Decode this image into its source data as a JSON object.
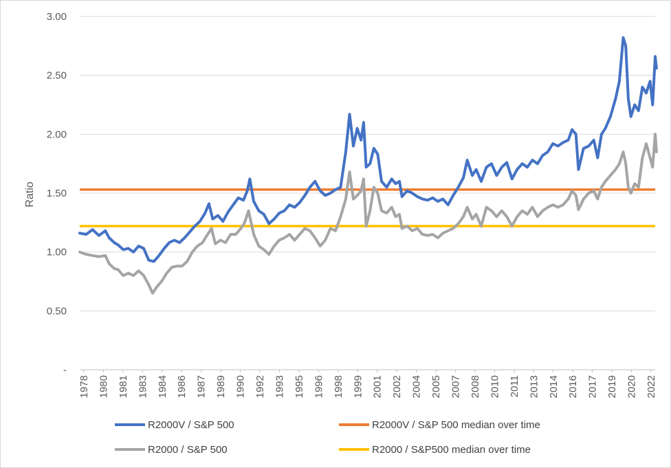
{
  "chart_data": {
    "type": "line",
    "ylabel": "Ratio",
    "xlabel": "",
    "ylim": [
      0,
      3
    ],
    "yticks": [
      {
        "value": 0,
        "label": "-"
      },
      {
        "value": 0.5,
        "label": "0.50"
      },
      {
        "value": 1,
        "label": "1.00"
      },
      {
        "value": 1.5,
        "label": "1.50"
      },
      {
        "value": 2,
        "label": "2.00"
      },
      {
        "value": 2.5,
        "label": "2.50"
      },
      {
        "value": 3,
        "label": "3.00"
      }
    ],
    "xlim": [
      1978.0,
      2023.0
    ],
    "x_tick_labels": [
      "1978",
      "1980",
      "1981",
      "1983",
      "1984",
      "1986",
      "1987",
      "1989",
      "1990",
      "1992",
      "1993",
      "1995",
      "1996",
      "1998",
      "1999",
      "2001",
      "2002",
      "2004",
      "2005",
      "2007",
      "2008",
      "2010",
      "2011",
      "2013",
      "2014",
      "2016",
      "2017",
      "2019",
      "2020",
      "2022"
    ],
    "grid": "horizontal",
    "legend_position": "bottom",
    "series": [
      {
        "name": "R2000V / S&P 500",
        "color": "#4472C4",
        "points": [
          [
            1978.0,
            1.16
          ],
          [
            1978.5,
            1.15
          ],
          [
            1979.0,
            1.19
          ],
          [
            1979.5,
            1.14
          ],
          [
            1980.0,
            1.18
          ],
          [
            1980.3,
            1.12
          ],
          [
            1980.7,
            1.08
          ],
          [
            1981.0,
            1.06
          ],
          [
            1981.4,
            1.02
          ],
          [
            1981.8,
            1.03
          ],
          [
            1982.2,
            1.0
          ],
          [
            1982.6,
            1.05
          ],
          [
            1983.0,
            1.03
          ],
          [
            1983.4,
            0.93
          ],
          [
            1983.8,
            0.92
          ],
          [
            1984.2,
            0.97
          ],
          [
            1984.6,
            1.03
          ],
          [
            1985.0,
            1.08
          ],
          [
            1985.4,
            1.1
          ],
          [
            1985.8,
            1.08
          ],
          [
            1986.2,
            1.12
          ],
          [
            1986.6,
            1.17
          ],
          [
            1987.0,
            1.22
          ],
          [
            1987.4,
            1.26
          ],
          [
            1987.8,
            1.33
          ],
          [
            1988.1,
            1.41
          ],
          [
            1988.4,
            1.28
          ],
          [
            1988.8,
            1.31
          ],
          [
            1989.2,
            1.26
          ],
          [
            1989.6,
            1.34
          ],
          [
            1990.0,
            1.4
          ],
          [
            1990.4,
            1.46
          ],
          [
            1990.8,
            1.44
          ],
          [
            1991.1,
            1.52
          ],
          [
            1991.3,
            1.62
          ],
          [
            1991.6,
            1.43
          ],
          [
            1992.0,
            1.35
          ],
          [
            1992.4,
            1.32
          ],
          [
            1992.8,
            1.24
          ],
          [
            1993.2,
            1.28
          ],
          [
            1993.6,
            1.33
          ],
          [
            1994.0,
            1.35
          ],
          [
            1994.4,
            1.4
          ],
          [
            1994.8,
            1.38
          ],
          [
            1995.2,
            1.42
          ],
          [
            1995.6,
            1.48
          ],
          [
            1996.0,
            1.55
          ],
          [
            1996.4,
            1.6
          ],
          [
            1996.8,
            1.52
          ],
          [
            1997.2,
            1.48
          ],
          [
            1997.6,
            1.5
          ],
          [
            1998.0,
            1.53
          ],
          [
            1998.4,
            1.55
          ],
          [
            1998.8,
            1.85
          ],
          [
            1999.1,
            2.17
          ],
          [
            1999.4,
            1.9
          ],
          [
            1999.7,
            2.05
          ],
          [
            2000.0,
            1.95
          ],
          [
            2000.2,
            2.1
          ],
          [
            2000.4,
            1.72
          ],
          [
            2000.7,
            1.75
          ],
          [
            2001.0,
            1.88
          ],
          [
            2001.3,
            1.83
          ],
          [
            2001.6,
            1.6
          ],
          [
            2002.0,
            1.55
          ],
          [
            2002.4,
            1.62
          ],
          [
            2002.7,
            1.58
          ],
          [
            2003.0,
            1.6
          ],
          [
            2003.2,
            1.47
          ],
          [
            2003.6,
            1.52
          ],
          [
            2004.0,
            1.5
          ],
          [
            2004.4,
            1.47
          ],
          [
            2004.8,
            1.45
          ],
          [
            2005.2,
            1.44
          ],
          [
            2005.6,
            1.46
          ],
          [
            2006.0,
            1.43
          ],
          [
            2006.4,
            1.45
          ],
          [
            2006.8,
            1.4
          ],
          [
            2007.2,
            1.48
          ],
          [
            2007.6,
            1.55
          ],
          [
            2008.0,
            1.63
          ],
          [
            2008.3,
            1.78
          ],
          [
            2008.7,
            1.65
          ],
          [
            2009.0,
            1.7
          ],
          [
            2009.4,
            1.6
          ],
          [
            2009.8,
            1.72
          ],
          [
            2010.2,
            1.75
          ],
          [
            2010.6,
            1.65
          ],
          [
            2011.0,
            1.72
          ],
          [
            2011.4,
            1.76
          ],
          [
            2011.8,
            1.62
          ],
          [
            2012.2,
            1.7
          ],
          [
            2012.6,
            1.75
          ],
          [
            2013.0,
            1.72
          ],
          [
            2013.4,
            1.78
          ],
          [
            2013.8,
            1.75
          ],
          [
            2014.2,
            1.82
          ],
          [
            2014.6,
            1.85
          ],
          [
            2015.0,
            1.92
          ],
          [
            2015.4,
            1.9
          ],
          [
            2015.8,
            1.93
          ],
          [
            2016.2,
            1.95
          ],
          [
            2016.5,
            2.04
          ],
          [
            2016.8,
            2.0
          ],
          [
            2017.0,
            1.7
          ],
          [
            2017.4,
            1.88
          ],
          [
            2017.8,
            1.9
          ],
          [
            2018.2,
            1.95
          ],
          [
            2018.5,
            1.8
          ],
          [
            2018.8,
            2.0
          ],
          [
            2019.1,
            2.05
          ],
          [
            2019.5,
            2.15
          ],
          [
            2019.9,
            2.3
          ],
          [
            2020.2,
            2.45
          ],
          [
            2020.5,
            2.82
          ],
          [
            2020.7,
            2.75
          ],
          [
            2020.9,
            2.3
          ],
          [
            2021.1,
            2.15
          ],
          [
            2021.4,
            2.25
          ],
          [
            2021.7,
            2.2
          ],
          [
            2022.0,
            2.4
          ],
          [
            2022.3,
            2.35
          ],
          [
            2022.6,
            2.45
          ],
          [
            2022.8,
            2.25
          ],
          [
            2023.0,
            2.66
          ],
          [
            2023.1,
            2.56
          ]
        ]
      },
      {
        "name": "R2000 / S&P 500",
        "color": "#A5A5A5",
        "points": [
          [
            1978.0,
            1.0
          ],
          [
            1978.5,
            0.98
          ],
          [
            1979.0,
            0.97
          ],
          [
            1979.5,
            0.96
          ],
          [
            1980.0,
            0.97
          ],
          [
            1980.3,
            0.9
          ],
          [
            1980.7,
            0.86
          ],
          [
            1981.0,
            0.85
          ],
          [
            1981.4,
            0.8
          ],
          [
            1981.8,
            0.82
          ],
          [
            1982.2,
            0.8
          ],
          [
            1982.6,
            0.84
          ],
          [
            1983.0,
            0.8
          ],
          [
            1983.4,
            0.72
          ],
          [
            1983.7,
            0.65
          ],
          [
            1984.0,
            0.7
          ],
          [
            1984.4,
            0.75
          ],
          [
            1984.8,
            0.82
          ],
          [
            1985.2,
            0.87
          ],
          [
            1985.6,
            0.88
          ],
          [
            1986.0,
            0.88
          ],
          [
            1986.4,
            0.92
          ],
          [
            1986.8,
            1.0
          ],
          [
            1987.2,
            1.05
          ],
          [
            1987.6,
            1.08
          ],
          [
            1988.0,
            1.15
          ],
          [
            1988.3,
            1.2
          ],
          [
            1988.6,
            1.07
          ],
          [
            1989.0,
            1.1
          ],
          [
            1989.4,
            1.08
          ],
          [
            1989.8,
            1.15
          ],
          [
            1990.2,
            1.15
          ],
          [
            1990.6,
            1.2
          ],
          [
            1990.9,
            1.25
          ],
          [
            1991.2,
            1.35
          ],
          [
            1991.6,
            1.15
          ],
          [
            1992.0,
            1.05
          ],
          [
            1992.4,
            1.02
          ],
          [
            1992.8,
            0.98
          ],
          [
            1993.2,
            1.05
          ],
          [
            1993.6,
            1.1
          ],
          [
            1994.0,
            1.12
          ],
          [
            1994.4,
            1.15
          ],
          [
            1994.8,
            1.1
          ],
          [
            1995.2,
            1.15
          ],
          [
            1995.6,
            1.2
          ],
          [
            1996.0,
            1.18
          ],
          [
            1996.4,
            1.12
          ],
          [
            1996.8,
            1.05
          ],
          [
            1997.2,
            1.1
          ],
          [
            1997.6,
            1.2
          ],
          [
            1998.0,
            1.18
          ],
          [
            1998.4,
            1.3
          ],
          [
            1998.8,
            1.45
          ],
          [
            1999.1,
            1.68
          ],
          [
            1999.4,
            1.45
          ],
          [
            1999.7,
            1.48
          ],
          [
            2000.0,
            1.52
          ],
          [
            2000.2,
            1.62
          ],
          [
            2000.4,
            1.22
          ],
          [
            2000.7,
            1.35
          ],
          [
            2001.0,
            1.55
          ],
          [
            2001.3,
            1.5
          ],
          [
            2001.6,
            1.35
          ],
          [
            2002.0,
            1.33
          ],
          [
            2002.4,
            1.38
          ],
          [
            2002.7,
            1.3
          ],
          [
            2003.0,
            1.32
          ],
          [
            2003.2,
            1.2
          ],
          [
            2003.6,
            1.22
          ],
          [
            2004.0,
            1.18
          ],
          [
            2004.4,
            1.2
          ],
          [
            2004.8,
            1.15
          ],
          [
            2005.2,
            1.14
          ],
          [
            2005.6,
            1.15
          ],
          [
            2006.0,
            1.12
          ],
          [
            2006.4,
            1.16
          ],
          [
            2006.8,
            1.18
          ],
          [
            2007.2,
            1.2
          ],
          [
            2007.6,
            1.24
          ],
          [
            2008.0,
            1.3
          ],
          [
            2008.3,
            1.38
          ],
          [
            2008.7,
            1.28
          ],
          [
            2009.0,
            1.32
          ],
          [
            2009.4,
            1.22
          ],
          [
            2009.8,
            1.38
          ],
          [
            2010.2,
            1.35
          ],
          [
            2010.6,
            1.3
          ],
          [
            2011.0,
            1.35
          ],
          [
            2011.4,
            1.3
          ],
          [
            2011.8,
            1.22
          ],
          [
            2012.2,
            1.3
          ],
          [
            2012.6,
            1.35
          ],
          [
            2013.0,
            1.32
          ],
          [
            2013.4,
            1.38
          ],
          [
            2013.8,
            1.3
          ],
          [
            2014.2,
            1.35
          ],
          [
            2014.6,
            1.38
          ],
          [
            2015.0,
            1.4
          ],
          [
            2015.4,
            1.38
          ],
          [
            2015.8,
            1.4
          ],
          [
            2016.2,
            1.45
          ],
          [
            2016.5,
            1.52
          ],
          [
            2016.8,
            1.48
          ],
          [
            2017.0,
            1.36
          ],
          [
            2017.4,
            1.45
          ],
          [
            2017.8,
            1.5
          ],
          [
            2018.2,
            1.52
          ],
          [
            2018.5,
            1.45
          ],
          [
            2018.8,
            1.55
          ],
          [
            2019.1,
            1.6
          ],
          [
            2019.5,
            1.65
          ],
          [
            2019.9,
            1.7
          ],
          [
            2020.2,
            1.75
          ],
          [
            2020.5,
            1.85
          ],
          [
            2020.7,
            1.75
          ],
          [
            2020.9,
            1.55
          ],
          [
            2021.1,
            1.5
          ],
          [
            2021.4,
            1.58
          ],
          [
            2021.7,
            1.55
          ],
          [
            2022.0,
            1.8
          ],
          [
            2022.3,
            1.92
          ],
          [
            2022.6,
            1.8
          ],
          [
            2022.8,
            1.72
          ],
          [
            2023.0,
            2.0
          ],
          [
            2023.1,
            1.85
          ]
        ]
      }
    ],
    "reference_lines": [
      {
        "name": "R2000V / S&P 500 median over time",
        "value": 1.53,
        "color": "#ED7D31"
      },
      {
        "name": "R2000 / S&P500 median over time",
        "value": 1.22,
        "color": "#FFC000"
      }
    ]
  }
}
